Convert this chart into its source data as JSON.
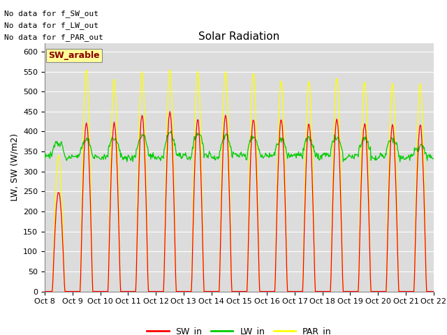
{
  "title": "Solar Radiation",
  "ylabel": "LW, SW (W/m2)",
  "ylim": [
    0,
    620
  ],
  "yticks": [
    0,
    50,
    100,
    150,
    200,
    250,
    300,
    350,
    400,
    450,
    500,
    550,
    600
  ],
  "x_tick_labels": [
    "Oct 8",
    "Oct 9",
    "Oct 10",
    "Oct 11",
    "Oct 12",
    "Oct 13",
    "Oct 14",
    "Oct 15",
    "Oct 16",
    "Oct 17",
    "Oct 18",
    "Oct 19",
    "Oct 20",
    "Oct 21",
    "Oct 22"
  ],
  "sw_color": "#ff0000",
  "lw_color": "#00cc00",
  "par_color": "#ffff00",
  "annotation_lines": [
    "No data for f_SW_out",
    "No data for f_LW_out",
    "No data for f_PAR_out"
  ],
  "legend_label_text": "SW_arable",
  "legend_entries": [
    "SW_in",
    "LW_in",
    "PAR_in"
  ],
  "background_color": "#dcdcdc",
  "grid_color": "#ffffff",
  "title_fontsize": 11,
  "tick_fontsize": 8,
  "ylabel_fontsize": 9,
  "annotation_fontsize": 8,
  "legend_fontsize": 9,
  "sw_peaks": [
    250,
    420,
    420,
    440,
    450,
    430,
    440,
    430,
    430,
    420,
    430,
    420,
    415,
    415
  ],
  "par_peaks": [
    340,
    555,
    530,
    550,
    555,
    550,
    550,
    545,
    525,
    525,
    535,
    525,
    520,
    520
  ],
  "lw_baseline": 350,
  "lw_peaks": [
    375,
    385,
    385,
    395,
    408,
    408,
    408,
    400,
    395,
    395,
    395,
    390,
    385,
    362
  ]
}
